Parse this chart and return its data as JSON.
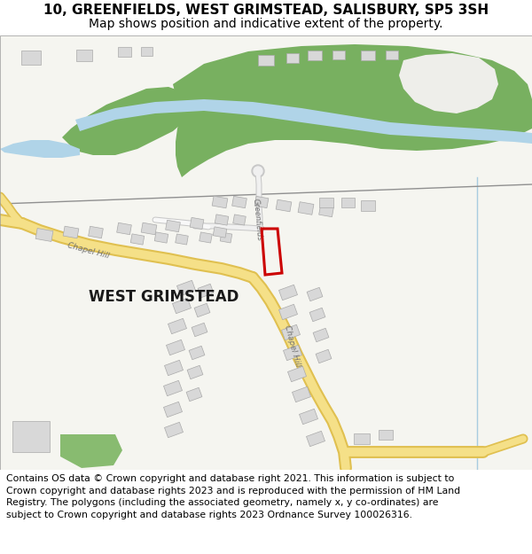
{
  "title_line1": "10, GREENFIELDS, WEST GRIMSTEAD, SALISBURY, SP5 3SH",
  "title_line2": "Map shows position and indicative extent of the property.",
  "footer_text": "Contains OS data © Crown copyright and database right 2021. This information is subject to Crown copyright and database rights 2023 and is reproduced with the permission of HM Land Registry. The polygons (including the associated geometry, namely x, y co-ordinates) are subject to Crown copyright and database rights 2023 Ordnance Survey 100026316.",
  "map_bg": "#f5f5f0",
  "road_yellow": "#f5e088",
  "road_yellow_dark": "#e0c050",
  "road_white": "#ffffff",
  "road_gray_out": "#c8c8c8",
  "road_gray_in": "#f0f0f0",
  "building_fill": "#d8d8d8",
  "building_stroke": "#aaaaaa",
  "green_field": "#78b060",
  "water_color": "#b0d4e8",
  "plot_red": "#cc0000",
  "label_gray": "#707070",
  "place_name": "#1a1a1a",
  "title_fs": 11,
  "subtitle_fs": 10,
  "footer_fs": 7.8,
  "map_border_color": "#999999",
  "light_blue_line": "#a8cce0"
}
